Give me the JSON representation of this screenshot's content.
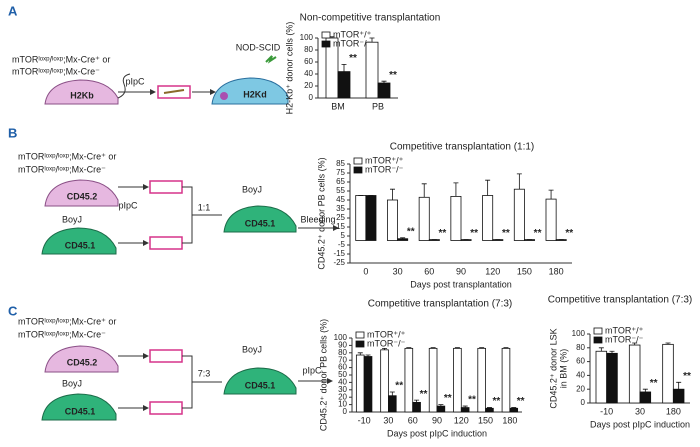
{
  "diagrams": {
    "a": {
      "label": "A",
      "line1": "mTORˡᵒˣᵖ/ˡᵒˣᵖ;Mx-Cre⁺ or",
      "line2": "mTORˡᵒˣᵖ/ˡᵒˣᵖ;Mx-Cre⁻",
      "donor": "H2Kb",
      "treatment": "pIpC",
      "recipient_strain": "NOD-SCID",
      "recipient": "H2Kd"
    },
    "b": {
      "label": "B",
      "line1": "mTORˡᵒˣᵖ/ˡᵒˣᵖ;Mx-Cre⁺ or",
      "line2": "mTORˡᵒˣᵖ/ˡᵒˣᵖ;Mx-Cre⁻",
      "donor": "CD45.2",
      "treatment": "pIpC",
      "competitor_strain": "BoyJ",
      "competitor": "CD45.1",
      "ratio": "1:1",
      "recipient_strain": "BoyJ",
      "recipient": "CD45.1",
      "readout": "Bleeding"
    },
    "c": {
      "label": "C",
      "line1": "mTORˡᵒˣᵖ/ˡᵒˣᵖ;Mx-Cre⁺ or",
      "line2": "mTORˡᵒˣᵖ/ˡᵒˣᵖ;Mx-Cre⁻",
      "donor": "CD45.2",
      "competitor_strain": "BoyJ",
      "competitor": "CD45.1",
      "ratio": "7:3",
      "recipient_strain": "BoyJ",
      "recipient": "CD45.1",
      "treatment": "pIpC"
    }
  },
  "chart_data": [
    {
      "type": "bar",
      "title": "Non-competitive transplantation",
      "y_label": "H2-Kb⁺ donor cells (%)",
      "categories": [
        "BM",
        "PB"
      ],
      "series": [
        {
          "name": "mTOR⁺/⁺",
          "color": "#ffffff",
          "values": [
            100,
            93
          ],
          "errors": [
            2,
            7
          ]
        },
        {
          "name": "mTOR⁻/⁻",
          "color": "#111111",
          "values": [
            44,
            25
          ],
          "errors": [
            12,
            3
          ]
        }
      ],
      "annotations": [
        {
          "category": "BM",
          "text": "**"
        },
        {
          "category": "PB",
          "text": "**"
        }
      ],
      "ylim": [
        0,
        100
      ],
      "yticks": [
        0,
        20,
        40,
        60,
        80,
        100
      ],
      "legend": "top-left"
    },
    {
      "type": "bar",
      "title": "Competitive transplantation (1:1)",
      "y_label": "CD45.2⁺ donor PB cells (%)",
      "x_label": "Days post transplantation",
      "categories": [
        "0",
        "30",
        "60",
        "90",
        "120",
        "150",
        "180"
      ],
      "series": [
        {
          "name": "mTOR⁺/⁺",
          "color": "#ffffff",
          "values": [
            50,
            45,
            48,
            49,
            50,
            57,
            46
          ],
          "errors": [
            0,
            12,
            15,
            15,
            17,
            17,
            10
          ]
        },
        {
          "name": "mTOR⁻/⁻",
          "color": "#111111",
          "values": [
            50,
            2,
            1,
            1,
            1,
            1,
            1
          ],
          "errors": [
            0,
            1,
            0,
            0,
            0,
            0,
            0
          ]
        }
      ],
      "annotations": [
        {
          "category": "30",
          "text": "**"
        },
        {
          "category": "60",
          "text": "**"
        },
        {
          "category": "90",
          "text": "**"
        },
        {
          "category": "120",
          "text": "**"
        },
        {
          "category": "150",
          "text": "**"
        },
        {
          "category": "180",
          "text": "**"
        }
      ],
      "ylim": [
        -25,
        85
      ],
      "yticks": [
        85,
        75,
        65,
        55,
        45,
        35,
        25,
        15,
        5,
        -5,
        -15,
        -25
      ],
      "legend": "top-left"
    },
    {
      "type": "bar",
      "title": "Competitive transplantation (7:3)",
      "y_label": "CD45.2⁺ donor PB cells (%)",
      "x_label": "Days post pIpC induction",
      "categories": [
        "-10",
        "30",
        "60",
        "90",
        "120",
        "150",
        "180"
      ],
      "series": [
        {
          "name": "mTOR⁺/⁺",
          "color": "#ffffff",
          "values": [
            77,
            84,
            86,
            86,
            86,
            86,
            86
          ],
          "errors": [
            3,
            2,
            1,
            1,
            1,
            1,
            1
          ]
        },
        {
          "name": "mTOR⁻/⁻",
          "color": "#111111",
          "values": [
            75,
            22,
            13,
            8,
            6,
            5,
            5
          ],
          "errors": [
            2,
            5,
            3,
            2,
            2,
            1,
            1
          ]
        }
      ],
      "annotations": [
        {
          "category": "30",
          "text": "**"
        },
        {
          "category": "60",
          "text": "**"
        },
        {
          "category": "90",
          "text": "**"
        },
        {
          "category": "120",
          "text": "**"
        },
        {
          "category": "150",
          "text": "**"
        },
        {
          "category": "180",
          "text": "**"
        }
      ],
      "ylim": [
        0,
        100
      ],
      "yticks": [
        0,
        10,
        20,
        30,
        40,
        50,
        60,
        70,
        80,
        90,
        100
      ],
      "legend": "top-left"
    },
    {
      "type": "bar",
      "title": "Competitive transplantation (7:3)",
      "y_label": [
        "CD45.2⁺ donor LSK",
        "in BM (%)"
      ],
      "x_label": "Days post pIpC induction",
      "categories": [
        "-10",
        "30",
        "180"
      ],
      "series": [
        {
          "name": "mTOR⁺/⁺",
          "color": "#ffffff",
          "values": [
            75,
            84,
            85
          ],
          "errors": [
            5,
            3,
            2
          ]
        },
        {
          "name": "mTOR⁻/⁻",
          "color": "#111111",
          "values": [
            72,
            16,
            20
          ],
          "errors": [
            3,
            4,
            10
          ]
        }
      ],
      "annotations": [
        {
          "category": "30",
          "text": "**"
        },
        {
          "category": "180",
          "text": "**"
        }
      ],
      "ylim": [
        0,
        100
      ],
      "yticks": [
        0,
        20,
        40,
        60,
        80,
        100
      ],
      "legend": "top-left"
    }
  ]
}
